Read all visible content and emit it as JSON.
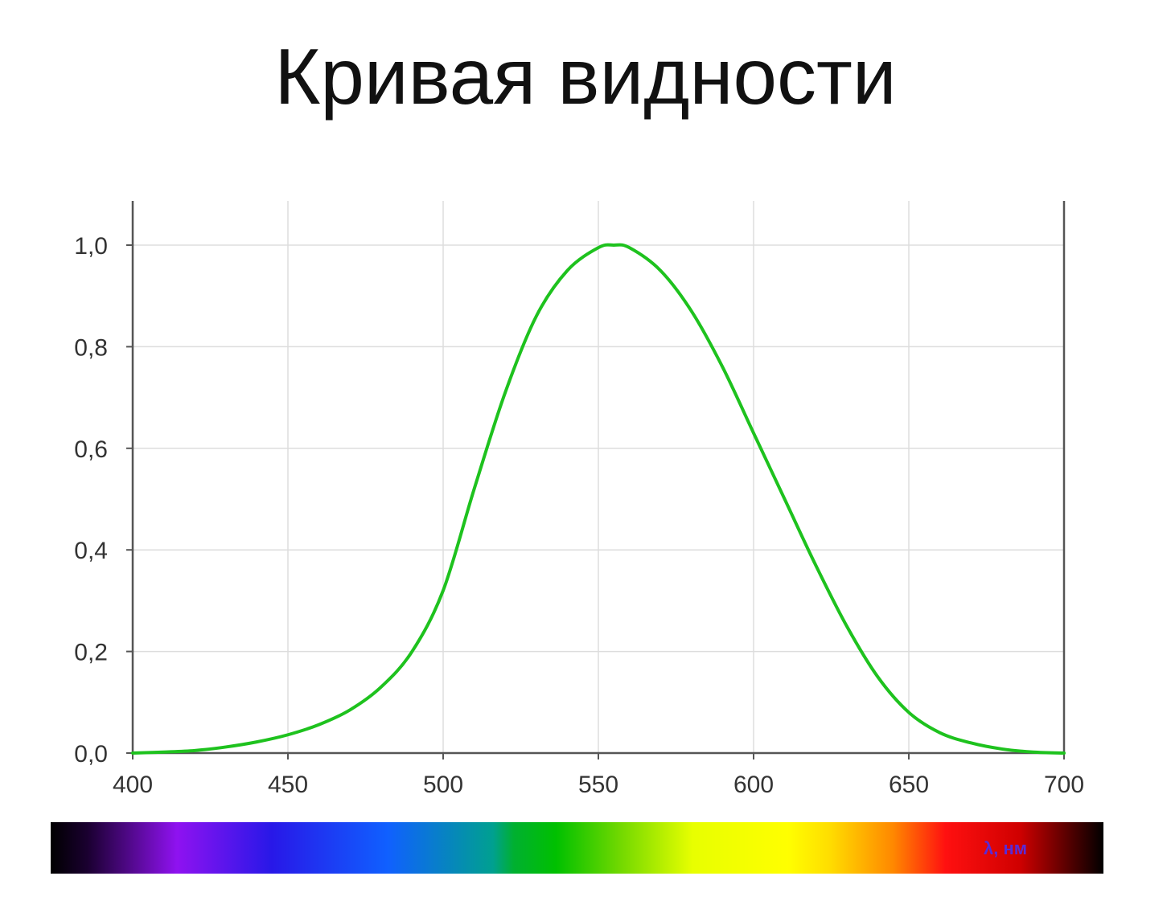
{
  "title": "Кривая видности",
  "colors": {
    "curve": "#1ec21e",
    "grid": "#dddddd",
    "axis": "#555555",
    "unit_label": "#5a2bd6"
  },
  "chart_data": {
    "type": "line",
    "title": "Кривая видности",
    "xlabel": "λ, нм",
    "ylabel": "",
    "xlim": [
      400,
      700
    ],
    "ylim": [
      0,
      1.0
    ],
    "x_ticks": [
      400,
      450,
      500,
      550,
      600,
      650,
      700
    ],
    "x_tick_labels": [
      "400",
      "450",
      "500",
      "550",
      "600",
      "650",
      "700"
    ],
    "y_ticks": [
      0,
      0.2,
      0.4,
      0.6,
      0.8,
      1.0
    ],
    "y_tick_labels": [
      "0,0",
      "0,2",
      "0,4",
      "0,6",
      "0,8",
      "1,0"
    ],
    "grid": true,
    "legend": "none",
    "series": [
      {
        "x": [
          400,
          410,
          420,
          430,
          440,
          450,
          460,
          470,
          480,
          490,
          500,
          510,
          520,
          530,
          540,
          550,
          555,
          560,
          570,
          580,
          590,
          600,
          610,
          620,
          630,
          640,
          650,
          660,
          670,
          680,
          690,
          700
        ],
        "y": [
          0.0,
          0.002,
          0.005,
          0.012,
          0.022,
          0.036,
          0.056,
          0.085,
          0.13,
          0.2,
          0.32,
          0.52,
          0.71,
          0.86,
          0.95,
          0.995,
          1.0,
          0.995,
          0.95,
          0.87,
          0.76,
          0.63,
          0.5,
          0.37,
          0.25,
          0.15,
          0.08,
          0.04,
          0.02,
          0.008,
          0.002,
          0.0
        ]
      }
    ],
    "spectrum_bar": {
      "label": "λ, нм",
      "stops": [
        {
          "offset": 0.0,
          "color": "#000000"
        },
        {
          "offset": 0.035,
          "color": "#1a0030"
        },
        {
          "offset": 0.12,
          "color": "#8f12f0"
        },
        {
          "offset": 0.21,
          "color": "#2818e8"
        },
        {
          "offset": 0.32,
          "color": "#1060ff"
        },
        {
          "offset": 0.42,
          "color": "#00a090"
        },
        {
          "offset": 0.44,
          "color": "#00b030"
        },
        {
          "offset": 0.48,
          "color": "#00c000"
        },
        {
          "offset": 0.54,
          "color": "#70d800"
        },
        {
          "offset": 0.61,
          "color": "#e8ff00"
        },
        {
          "offset": 0.7,
          "color": "#ffff00"
        },
        {
          "offset": 0.74,
          "color": "#ffdd00"
        },
        {
          "offset": 0.8,
          "color": "#ff8800"
        },
        {
          "offset": 0.85,
          "color": "#ff1010"
        },
        {
          "offset": 0.92,
          "color": "#d00000"
        },
        {
          "offset": 1.0,
          "color": "#000000"
        }
      ]
    }
  }
}
